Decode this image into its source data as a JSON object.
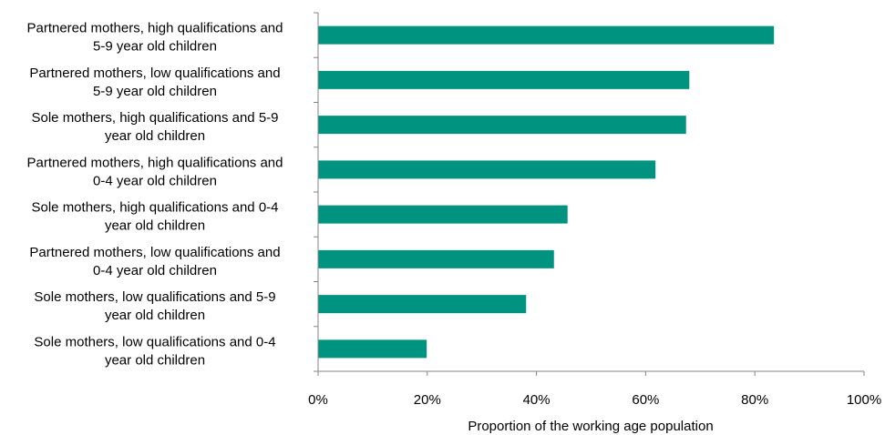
{
  "chart_data": {
    "type": "bar",
    "orientation": "horizontal",
    "categories": [
      [
        "Partnered mothers, high qualifications and",
        "5-9 year old children"
      ],
      [
        "Partnered mothers, low qualifications and",
        "5-9 year old children"
      ],
      [
        "Sole mothers, high qualifications and 5-9",
        "year old children"
      ],
      [
        "Partnered mothers, high qualifications and",
        "0-4 year old children"
      ],
      [
        "Sole mothers, high qualifications and 0-4",
        "year old  children"
      ],
      [
        "Partnered mothers, low qualifications and",
        "0-4 year old children"
      ],
      [
        "Sole mothers, low qualifications and 5-9",
        "year old children"
      ],
      [
        "Sole mothers, low qualifications and 0-4",
        "year old children"
      ]
    ],
    "values": [
      0.835,
      0.68,
      0.674,
      0.618,
      0.457,
      0.432,
      0.381,
      0.199
    ],
    "xlim": [
      0,
      1
    ],
    "xticks": [
      0,
      0.2,
      0.4,
      0.6,
      0.8,
      1.0
    ],
    "xtick_labels": [
      "0%",
      "20%",
      "40%",
      "60%",
      "80%",
      "100%"
    ],
    "xlabel": "Proportion of the working age population",
    "ylabel": "",
    "title": "",
    "grid": false,
    "legend": "none",
    "bar_color": "#009480"
  }
}
